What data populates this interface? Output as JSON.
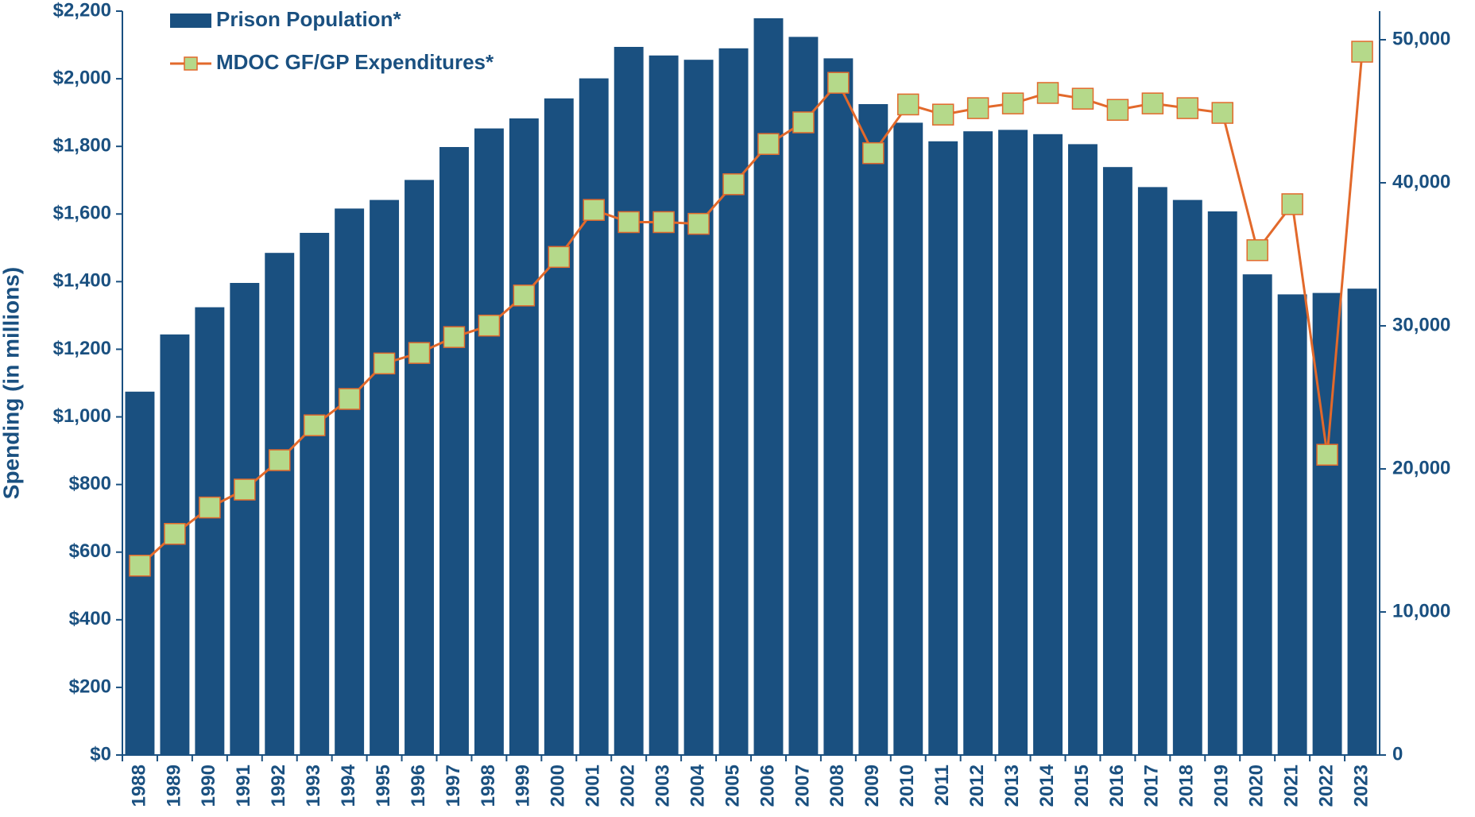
{
  "chart_data": {
    "type": "bar-line",
    "y_axis_label": "Spending (in millions)",
    "categories": [
      "1988",
      "1989",
      "1990",
      "1991",
      "1992",
      "1993",
      "1994",
      "1995",
      "1996",
      "1997",
      "1998",
      "1999",
      "2000",
      "2001",
      "2002",
      "2003",
      "2004",
      "2005",
      "2006",
      "2007",
      "2008",
      "2009",
      "2010",
      "2011",
      "2012",
      "2013",
      "2014",
      "2015",
      "2016",
      "2017",
      "2018",
      "2019",
      "2020",
      "2021",
      "2022",
      "2023"
    ],
    "series": [
      {
        "name": "Prison Population*",
        "kind": "bar",
        "axis": "y2",
        "color": "#1a5080",
        "values": [
          25400,
          29400,
          31300,
          33000,
          35100,
          36500,
          38200,
          38800,
          40200,
          42500,
          43800,
          44500,
          45900,
          47300,
          49500,
          48900,
          48600,
          49400,
          51500,
          50200,
          48700,
          45500,
          44200,
          42900,
          43600,
          43700,
          43400,
          42700,
          41100,
          39700,
          38800,
          38000,
          33600,
          32200,
          32300,
          32600
        ]
      },
      {
        "name": "MDOC GF/GP Expenditures*",
        "kind": "line",
        "axis": "y",
        "color": "#e2692b",
        "marker_color": "#b5d98a",
        "values": [
          560,
          654,
          732,
          785,
          872,
          975,
          1053,
          1158,
          1189,
          1236,
          1270,
          1359,
          1473,
          1612,
          1576,
          1576,
          1571,
          1688,
          1807,
          1871,
          1988,
          1780,
          1924,
          1894,
          1913,
          1927,
          1958,
          1941,
          1908,
          1927,
          1913,
          1899,
          1493,
          1629,
          888,
          2080
        ]
      }
    ],
    "ylim": [
      0,
      2200
    ],
    "yticks": [
      {
        "value": 0,
        "label": "$0"
      },
      {
        "value": 200,
        "label": "$200"
      },
      {
        "value": 400,
        "label": "$400"
      },
      {
        "value": 600,
        "label": "$600"
      },
      {
        "value": 800,
        "label": "$800"
      },
      {
        "value": 1000,
        "label": "$1,000"
      },
      {
        "value": 1200,
        "label": "$1,200"
      },
      {
        "value": 1400,
        "label": "$1,400"
      },
      {
        "value": 1600,
        "label": "$1,600"
      },
      {
        "value": 1800,
        "label": "$1,800"
      },
      {
        "value": 2000,
        "label": "$2,000"
      },
      {
        "value": 2200,
        "label": "$2,200"
      }
    ],
    "y2lim": [
      0,
      52000
    ],
    "y2ticks": [
      0,
      {
        "value": 10000,
        "label": "10,000"
      },
      {
        "value": 20000,
        "label": "20,000"
      },
      {
        "value": 30000,
        "label": "30,000"
      },
      {
        "value": 40000,
        "label": "40,000"
      },
      {
        "value": 50000,
        "label": "50,000"
      }
    ],
    "legend": "top-left",
    "grid": false
  }
}
